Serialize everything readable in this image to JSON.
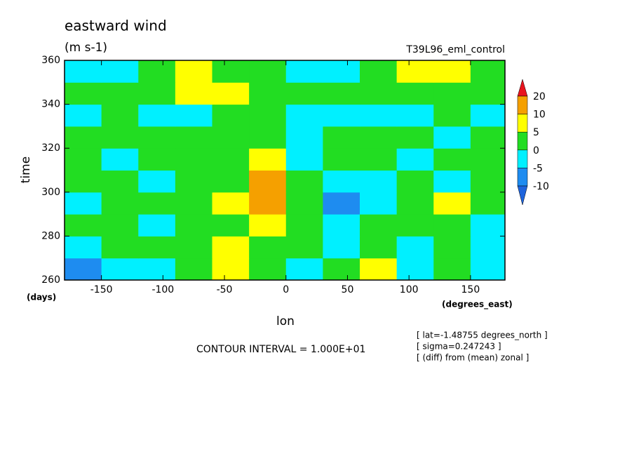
{
  "chart_data": {
    "type": "contour",
    "title": "eastward wind",
    "subtitle": "(m s-1)",
    "run_label": "T39L96_eml_control",
    "x_label": "lon",
    "y_label": "time",
    "x_units": "(degrees_east)",
    "y_units": "(days)",
    "contour_interval": "CONTOUR INTERVAL = 1.000E+01",
    "notes": [
      "[ lat=-1.48755 degrees_north ]",
      "[ sigma=0.247243 ]",
      "[ (diff) from (mean) zonal ]"
    ],
    "xlim": [
      -180,
      178
    ],
    "ylim": [
      260,
      360
    ],
    "xticks": [
      -150,
      -100,
      -50,
      0,
      50,
      100,
      150
    ],
    "yticks": [
      260,
      280,
      300,
      320,
      340,
      360
    ],
    "x": [
      -165,
      -135,
      -105,
      -75,
      -45,
      -15,
      15,
      45,
      75,
      105,
      135,
      165
    ],
    "y": [
      265,
      275,
      285,
      295,
      305,
      315,
      325,
      335,
      345,
      355
    ],
    "z": [
      [
        -8,
        -5,
        -2,
        3,
        8,
        2,
        -2,
        0,
        5,
        -2,
        3,
        -5
      ],
      [
        -3,
        2,
        0,
        3,
        6,
        4,
        0,
        -3,
        2,
        -2,
        1,
        -3
      ],
      [
        2,
        3,
        -2,
        0,
        3,
        6,
        2,
        -5,
        0,
        2,
        3,
        -2
      ],
      [
        -2,
        0,
        3,
        2,
        5,
        15,
        0,
        -8,
        -5,
        0,
        5,
        2
      ],
      [
        2,
        0,
        -2,
        3,
        2,
        12,
        3,
        -5,
        -3,
        0,
        -2,
        0
      ],
      [
        0,
        -3,
        2,
        3,
        0,
        5,
        -2,
        0,
        3,
        -2,
        2,
        0
      ],
      [
        2,
        3,
        0,
        2,
        4,
        2,
        -2,
        3,
        2,
        0,
        -3,
        2
      ],
      [
        -3,
        0,
        -2,
        -5,
        2,
        3,
        -3,
        -5,
        -3,
        -2,
        0,
        -3
      ],
      [
        0,
        2,
        2,
        5,
        8,
        3,
        0,
        2,
        0,
        3,
        2,
        0
      ],
      [
        -2,
        -2,
        3,
        5,
        3,
        0,
        -3,
        -2,
        2,
        5,
        8,
        3
      ]
    ],
    "levels": [
      -10,
      -5,
      0,
      5,
      10,
      20
    ],
    "colors": [
      "#1e64dc",
      "#1e8cf0",
      "#00f0ff",
      "#22dd22",
      "#ffff00",
      "#f5a000",
      "#e8141e"
    ]
  }
}
